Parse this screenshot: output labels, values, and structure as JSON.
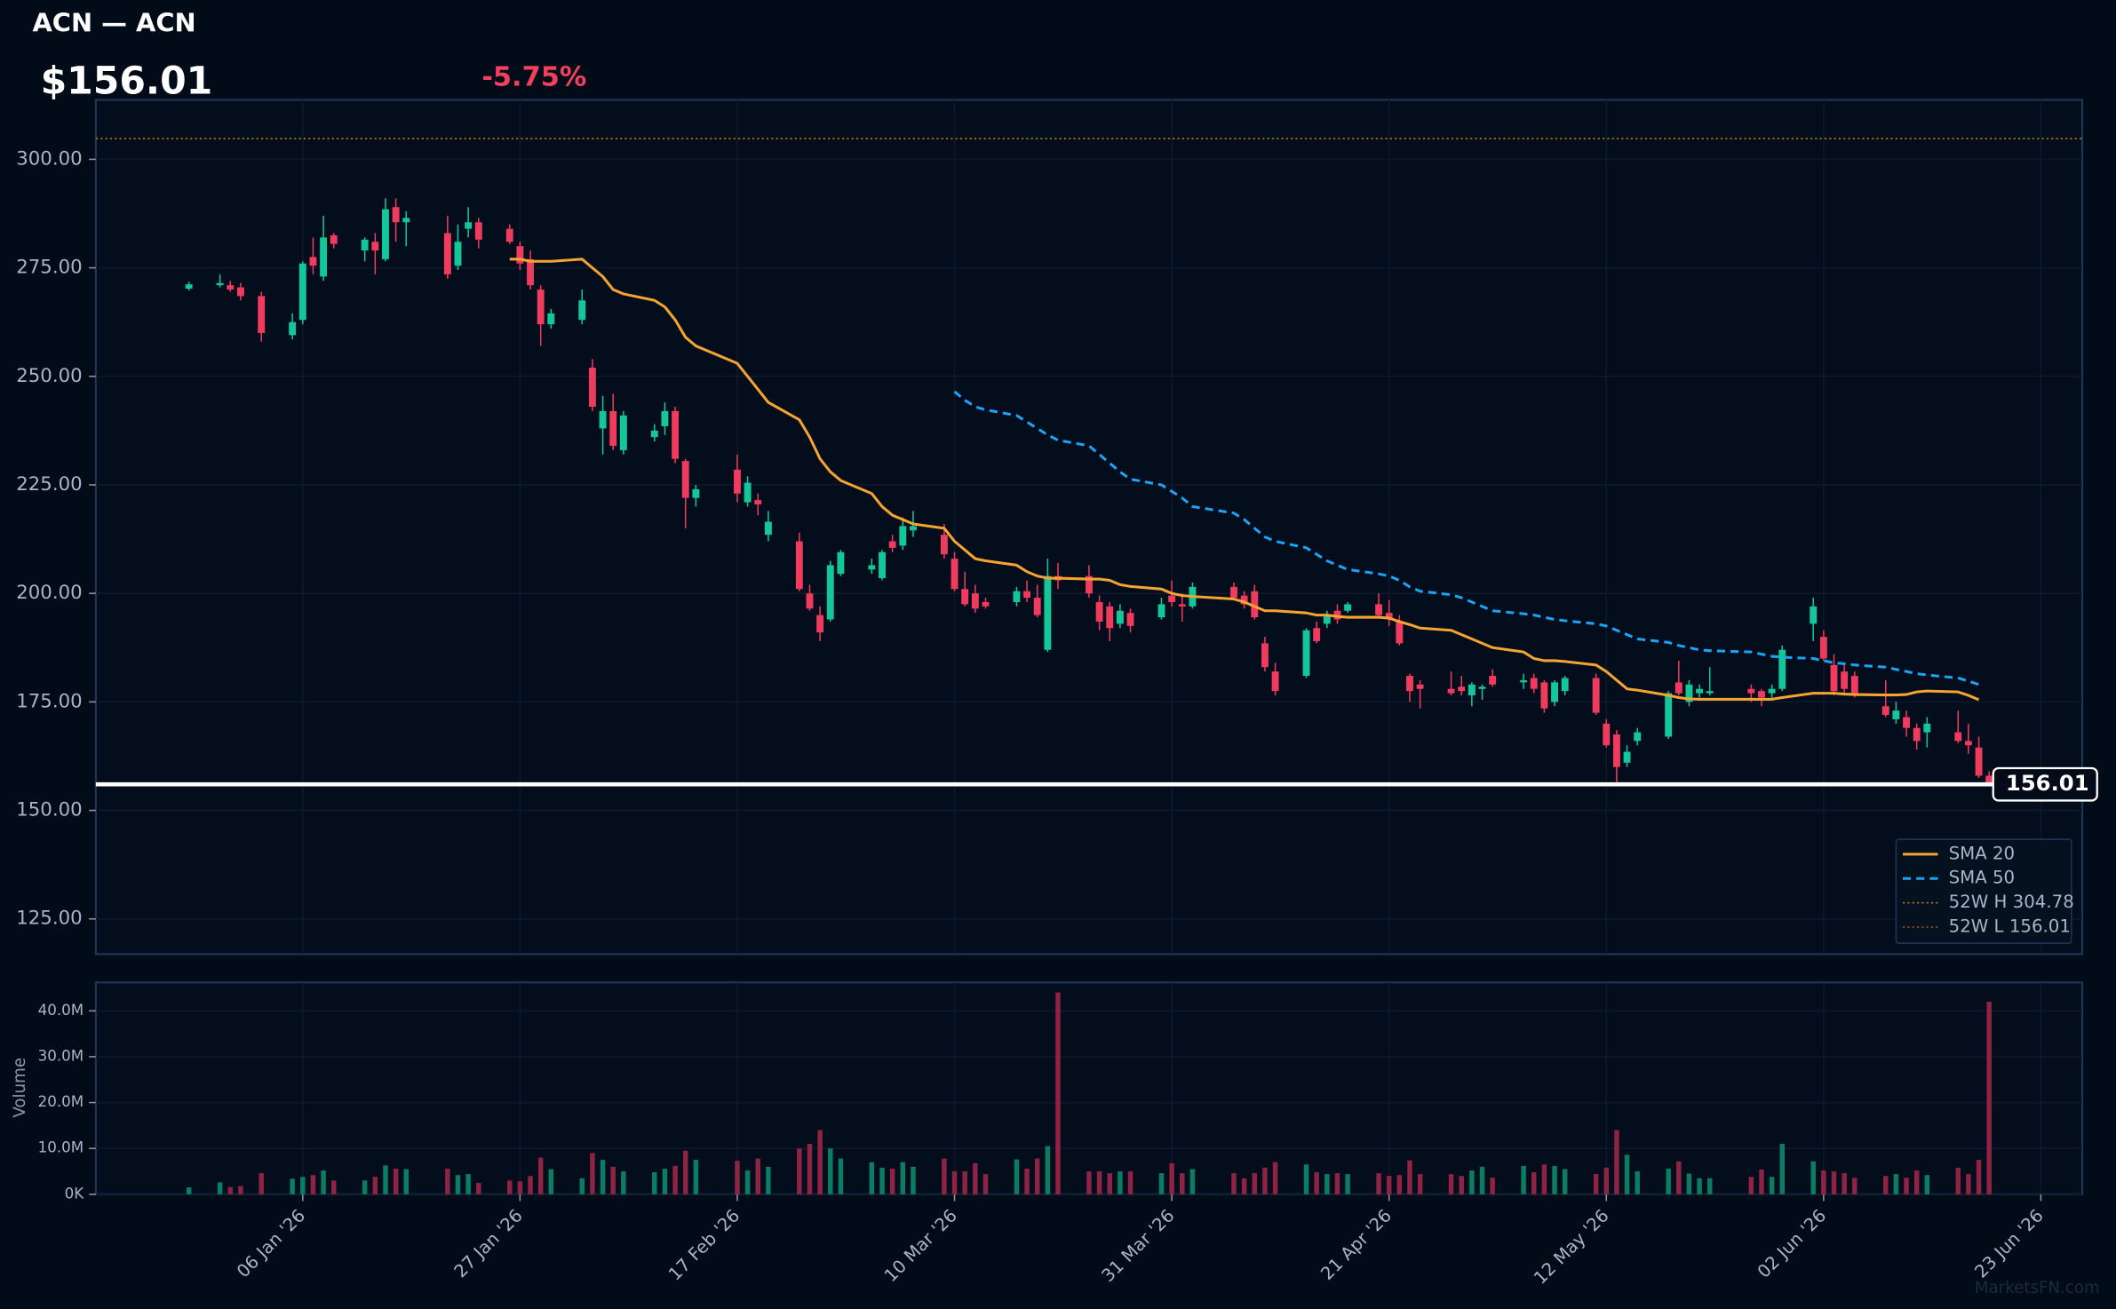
{
  "chart_data": {
    "type": "candlestick",
    "title": "ACN — ACN",
    "price_label": "$156.01",
    "change_label": "-5.75%",
    "watermark": "MarketsFN.com",
    "x": [
      "2025-12-26",
      "2025-12-29",
      "2025-12-30",
      "2025-12-31",
      "2026-01-02",
      "2026-01-05",
      "2026-01-06",
      "2026-01-07",
      "2026-01-08",
      "2026-01-09",
      "2026-01-12",
      "2026-01-13",
      "2026-01-14",
      "2026-01-15",
      "2026-01-16",
      "2026-01-20",
      "2026-01-21",
      "2026-01-22",
      "2026-01-23",
      "2026-01-26",
      "2026-01-27",
      "2026-01-28",
      "2026-01-29",
      "2026-01-30",
      "2026-02-02",
      "2026-02-03",
      "2026-02-04",
      "2026-02-05",
      "2026-02-06",
      "2026-02-09",
      "2026-02-10",
      "2026-02-11",
      "2026-02-12",
      "2026-02-13",
      "2026-02-17",
      "2026-02-18",
      "2026-02-19",
      "2026-02-20",
      "2026-02-23",
      "2026-02-24",
      "2026-02-25",
      "2026-02-26",
      "2026-02-27",
      "2026-03-02",
      "2026-03-03",
      "2026-03-04",
      "2026-03-05",
      "2026-03-06",
      "2026-03-09",
      "2026-03-10",
      "2026-03-11",
      "2026-03-12",
      "2026-03-13",
      "2026-03-16",
      "2026-03-17",
      "2026-03-18",
      "2026-03-19",
      "2026-03-20",
      "2026-03-23",
      "2026-03-24",
      "2026-03-25",
      "2026-03-26",
      "2026-03-27",
      "2026-03-30",
      "2026-03-31",
      "2026-04-01",
      "2026-04-02",
      "2026-04-06",
      "2026-04-07",
      "2026-04-08",
      "2026-04-09",
      "2026-04-10",
      "2026-04-13",
      "2026-04-14",
      "2026-04-15",
      "2026-04-16",
      "2026-04-17",
      "2026-04-20",
      "2026-04-21",
      "2026-04-22",
      "2026-04-23",
      "2026-04-24",
      "2026-04-27",
      "2026-04-28",
      "2026-04-29",
      "2026-04-30",
      "2026-05-01",
      "2026-05-04",
      "2026-05-05",
      "2026-05-06",
      "2026-05-07",
      "2026-05-08",
      "2026-05-11",
      "2026-05-12",
      "2026-05-13",
      "2026-05-14",
      "2026-05-15",
      "2026-05-18",
      "2026-05-19",
      "2026-05-20",
      "2026-05-21",
      "2026-05-22",
      "2026-05-26",
      "2026-05-27",
      "2026-05-28",
      "2026-05-29",
      "2026-06-01",
      "2026-06-02",
      "2026-06-03",
      "2026-06-04",
      "2026-06-05",
      "2026-06-08",
      "2026-06-09",
      "2026-06-10",
      "2026-06-11",
      "2026-06-12",
      "2026-06-15",
      "2026-06-16",
      "2026-06-17",
      "2026-06-18"
    ],
    "open": [
      270.2,
      271,
      271,
      270.5,
      268.5,
      259.5,
      263,
      277.5,
      273,
      282.5,
      279,
      281,
      277,
      289,
      285.5,
      283,
      275.5,
      284,
      285.5,
      284,
      280,
      277,
      270,
      262,
      263,
      252,
      238,
      242,
      233,
      236,
      238.5,
      242,
      230.5,
      222,
      228.5,
      221,
      221.5,
      213.5,
      212,
      200,
      195,
      194,
      204.5,
      205.5,
      203.5,
      212,
      211,
      214.5,
      213.5,
      208,
      201,
      200,
      198,
      198,
      200.5,
      199,
      187,
      204,
      204,
      198,
      197,
      193,
      195.5,
      194.5,
      199.5,
      197.5,
      197,
      201.5,
      199.5,
      200.5,
      188.5,
      182,
      181,
      192,
      193,
      196,
      196,
      197.5,
      195.5,
      193.5,
      181,
      179,
      178,
      178.5,
      176.5,
      178,
      181,
      179.5,
      180.5,
      179.5,
      175,
      177.5,
      180.5,
      170,
      167.5,
      161,
      166,
      167,
      179.5,
      175,
      177,
      177,
      178,
      177.5,
      177,
      178,
      193,
      190,
      183.5,
      182,
      181,
      174,
      171,
      171.5,
      169,
      168,
      168,
      166,
      164.5,
      158
    ],
    "high": [
      271.8,
      273.5,
      272,
      271.5,
      269.5,
      264.5,
      276.5,
      282,
      287,
      283,
      282,
      283,
      291,
      291,
      288,
      287,
      285,
      289,
      286.5,
      285,
      281,
      279,
      271,
      265.5,
      270,
      254,
      245.5,
      246,
      242,
      239,
      244,
      243,
      231,
      225,
      232,
      227,
      223,
      219,
      214,
      202,
      197,
      207.5,
      210,
      208,
      210,
      213.5,
      217.5,
      219,
      216,
      209.5,
      205,
      202,
      199,
      201.5,
      203,
      202,
      208,
      207,
      206.5,
      199.5,
      198,
      197.5,
      196.5,
      199,
      203,
      200,
      202.5,
      202.5,
      200.5,
      202,
      190,
      184,
      192,
      193.5,
      196,
      197.5,
      198,
      200,
      198.5,
      195,
      181.5,
      180,
      182,
      181,
      179.5,
      179,
      182.5,
      181.5,
      181.5,
      180,
      180,
      181,
      181.5,
      171,
      168.5,
      165,
      169,
      177.5,
      184.5,
      180,
      179,
      183,
      179,
      178,
      179,
      188,
      199,
      191.5,
      186,
      184,
      182,
      180,
      175,
      173,
      170,
      171.5,
      173,
      170,
      167,
      159
    ],
    "low": [
      269.8,
      270.5,
      269.5,
      267.5,
      258,
      258.5,
      262,
      273.5,
      272,
      279.5,
      276.5,
      273.5,
      276.5,
      281,
      280,
      272.5,
      274.5,
      282,
      279.5,
      280.5,
      274.5,
      270,
      257,
      261,
      262,
      242,
      232,
      233,
      232,
      235,
      236.5,
      230,
      215,
      220,
      221,
      220,
      218,
      212,
      200.5,
      196,
      189,
      193.5,
      204,
      204.5,
      203,
      209.5,
      210,
      213,
      208,
      200.5,
      197,
      195.5,
      196.5,
      197,
      198,
      194.5,
      186.5,
      201,
      199,
      191.5,
      189,
      192,
      191,
      194,
      197,
      193.5,
      196.5,
      198.5,
      196.5,
      194,
      182,
      176.5,
      180.5,
      188.5,
      192,
      193,
      195.5,
      194.5,
      192.5,
      188,
      175,
      173.5,
      176.5,
      176.5,
      174,
      175.5,
      178.5,
      178,
      177,
      172.5,
      174,
      176.5,
      172,
      164.5,
      156.01,
      160,
      165,
      166.5,
      176.5,
      174,
      176,
      176.5,
      175,
      174,
      176,
      177.5,
      189,
      184.5,
      176.5,
      177,
      176,
      171.5,
      170,
      167,
      164,
      164.5,
      165.5,
      163,
      157.5,
      156.01
    ],
    "close": [
      271.2,
      271.5,
      270,
      268.5,
      260,
      262.5,
      276,
      275.5,
      282,
      280.5,
      281.5,
      279,
      288.5,
      285.5,
      286.5,
      273.5,
      281,
      285.5,
      281.5,
      281,
      276,
      271,
      262,
      264.5,
      267.5,
      243,
      242,
      234,
      241,
      237.5,
      242,
      231,
      222,
      224,
      223,
      225.5,
      220.5,
      216.5,
      201,
      196.5,
      191,
      206.5,
      209.5,
      206.5,
      209.5,
      210.5,
      215.5,
      215.5,
      209,
      201,
      197.5,
      196.5,
      197,
      200.5,
      199,
      195,
      204,
      203,
      200,
      193.5,
      192,
      196,
      192.5,
      197.5,
      198,
      197,
      201.5,
      199,
      197.5,
      194.5,
      183,
      177.5,
      191.5,
      189,
      195,
      194,
      197.5,
      195,
      194,
      188.5,
      177.5,
      178,
      177,
      177.5,
      179,
      178.5,
      179,
      180,
      178,
      173.5,
      179.5,
      180.5,
      172.5,
      165,
      160,
      163.5,
      168,
      177,
      177,
      179,
      178,
      177.5,
      177,
      176,
      178,
      187,
      197,
      185,
      177.5,
      178,
      177,
      172,
      173,
      169,
      166,
      170,
      166,
      165,
      158,
      156.01
    ],
    "xlim": [
      "2025-12-17",
      "2026-06-27"
    ],
    "xticks": [
      {
        "value": "2026-01-06",
        "label": "06 Jan '26"
      },
      {
        "value": "2026-01-27",
        "label": "27 Jan '26"
      },
      {
        "value": "2026-02-17",
        "label": "17 Feb '26"
      },
      {
        "value": "2026-03-10",
        "label": "10 Mar '26"
      },
      {
        "value": "2026-03-31",
        "label": "31 Mar '26"
      },
      {
        "value": "2026-04-21",
        "label": "21 Apr '26"
      },
      {
        "value": "2026-05-12",
        "label": "12 May '26"
      },
      {
        "value": "2026-06-02",
        "label": "02 Jun '26"
      },
      {
        "value": "2026-06-23",
        "label": "23 Jun '26"
      }
    ],
    "ylim": [
      116.9,
      313.7
    ],
    "yticks": [
      {
        "value": 125,
        "label": "125.00"
      },
      {
        "value": 150,
        "label": "150.00"
      },
      {
        "value": 175,
        "label": "175.00"
      },
      {
        "value": 200,
        "label": "200.00"
      },
      {
        "value": 225,
        "label": "225.00"
      },
      {
        "value": 250,
        "label": "250.00"
      },
      {
        "value": 275,
        "label": "275.00"
      },
      {
        "value": 300,
        "label": "300.00"
      }
    ],
    "grid": true,
    "up_color": "#14c79a",
    "down_color": "#ef3b5d",
    "series": [
      {
        "name": "SMA 20",
        "color": "#f5a431",
        "dash": "solid",
        "values": [
          null,
          null,
          null,
          null,
          null,
          null,
          null,
          null,
          null,
          null,
          null,
          null,
          null,
          null,
          null,
          null,
          null,
          null,
          null,
          277,
          277,
          276.5,
          276.5,
          276.5,
          277,
          275,
          273,
          270,
          269,
          267.5,
          266,
          263,
          259,
          257,
          253,
          250,
          247,
          244,
          240,
          236,
          231,
          228,
          226,
          223,
          220,
          218,
          217,
          216,
          215,
          212,
          210,
          208,
          207.5,
          206.5,
          205,
          204,
          203.5,
          203.5,
          203.3,
          203.3,
          203,
          202,
          201.6,
          201,
          200,
          199.5,
          199.3,
          198.7,
          198,
          197,
          196,
          196,
          195.5,
          195,
          195,
          194.7,
          194.5,
          194.5,
          194.3,
          193.5,
          192.8,
          192,
          191.5,
          190.5,
          189.5,
          188.5,
          187.5,
          186.5,
          185,
          184.5,
          184.5,
          184.3,
          183.5,
          182,
          180,
          178,
          177.7,
          176.5,
          176,
          175.7,
          175.6,
          175.6,
          175.6,
          175.6,
          175.6,
          176,
          177,
          177,
          177,
          176.8,
          176.7,
          176.6,
          176.6,
          176.7,
          177.3,
          177.5,
          177.3,
          176.5,
          175.5,
          null
        ]
      },
      {
        "name": "SMA 50",
        "color": "#1ba4f5",
        "dash": "dashed",
        "values": [
          null,
          null,
          null,
          null,
          null,
          null,
          null,
          null,
          null,
          null,
          null,
          null,
          null,
          null,
          null,
          null,
          null,
          null,
          null,
          null,
          null,
          null,
          null,
          null,
          null,
          null,
          null,
          null,
          null,
          null,
          null,
          null,
          null,
          null,
          null,
          null,
          null,
          null,
          null,
          null,
          null,
          null,
          null,
          null,
          null,
          null,
          null,
          null,
          null,
          246.5,
          244.5,
          243,
          242.3,
          241,
          239.5,
          238,
          236.5,
          235.3,
          234,
          232,
          230,
          228,
          226.3,
          225,
          223.5,
          222,
          220,
          218.5,
          217,
          215,
          213,
          212,
          210.5,
          209,
          207.5,
          206.5,
          205.5,
          204.5,
          204,
          203,
          201.5,
          200.5,
          199.7,
          199,
          198,
          197,
          196,
          195.3,
          195,
          194.5,
          194,
          193.7,
          193,
          192.5,
          191.5,
          190.5,
          189.5,
          188.7,
          188,
          187.5,
          187,
          186.8,
          186.5,
          186,
          185.5,
          185.3,
          185,
          184.5,
          184,
          183.8,
          183.5,
          183,
          182.5,
          182,
          181.5,
          181.2,
          180.5,
          179.8,
          179,
          null
        ]
      }
    ],
    "hlines": [
      {
        "name": "52W H 304.78",
        "value": 304.78,
        "color": "#b8860b"
      },
      {
        "name": "52W L 156.01",
        "value": 156.01,
        "color": "#a0522d"
      }
    ],
    "last_price": 156.01,
    "legend": "lower right",
    "volume": {
      "ylabel": "Volume",
      "ylim": [
        0,
        46.2
      ],
      "yticks": [
        {
          "value": 0,
          "label": "0K"
        },
        {
          "value": 10,
          "label": "10.0M"
        },
        {
          "value": 20,
          "label": "20.0M"
        },
        {
          "value": 30,
          "label": "30.0M"
        },
        {
          "value": 40,
          "label": "40.0M"
        }
      ],
      "up_color": "#0b7d63",
      "down_color": "#8f2343",
      "values": [
        1.5,
        2.6,
        1.6,
        1.8,
        4.6,
        3.4,
        3.8,
        4.2,
        5.2,
        3,
        3,
        3.8,
        6.3,
        5.6,
        5.5,
        5.6,
        4.2,
        4.4,
        2.5,
        3,
        2.8,
        4,
        8,
        5.5,
        3.5,
        9,
        7.5,
        6,
        5,
        4.8,
        5.6,
        6.2,
        9.5,
        7.5,
        7.3,
        5.2,
        7.8,
        6,
        10,
        11,
        14,
        10,
        7.8,
        7,
        5.8,
        5.6,
        7,
        6,
        7.8,
        5,
        5,
        6.8,
        4.4,
        7.6,
        5.6,
        7.8,
        10.5,
        44,
        5,
        5,
        4.6,
        5,
        5,
        4.6,
        6.8,
        4.6,
        5.5,
        4.6,
        3.5,
        4.6,
        5.8,
        7,
        6.5,
        4.8,
        4.4,
        4.6,
        4.4,
        4.6,
        4,
        4.2,
        7.4,
        4.4,
        4.4,
        4,
        5.2,
        6,
        3.6,
        6.2,
        4.8,
        6.5,
        6.2,
        5.5,
        4.4,
        5.8,
        14,
        8.6,
        5,
        5.6,
        7.2,
        4.5,
        3.5,
        3.5,
        3.8,
        5.4,
        3.8,
        11,
        7.2,
        5.2,
        5,
        4.6,
        3.6,
        4,
        4.4,
        3.6,
        5.2,
        4.2,
        5.8,
        4.4,
        7.5,
        42
      ]
    }
  }
}
